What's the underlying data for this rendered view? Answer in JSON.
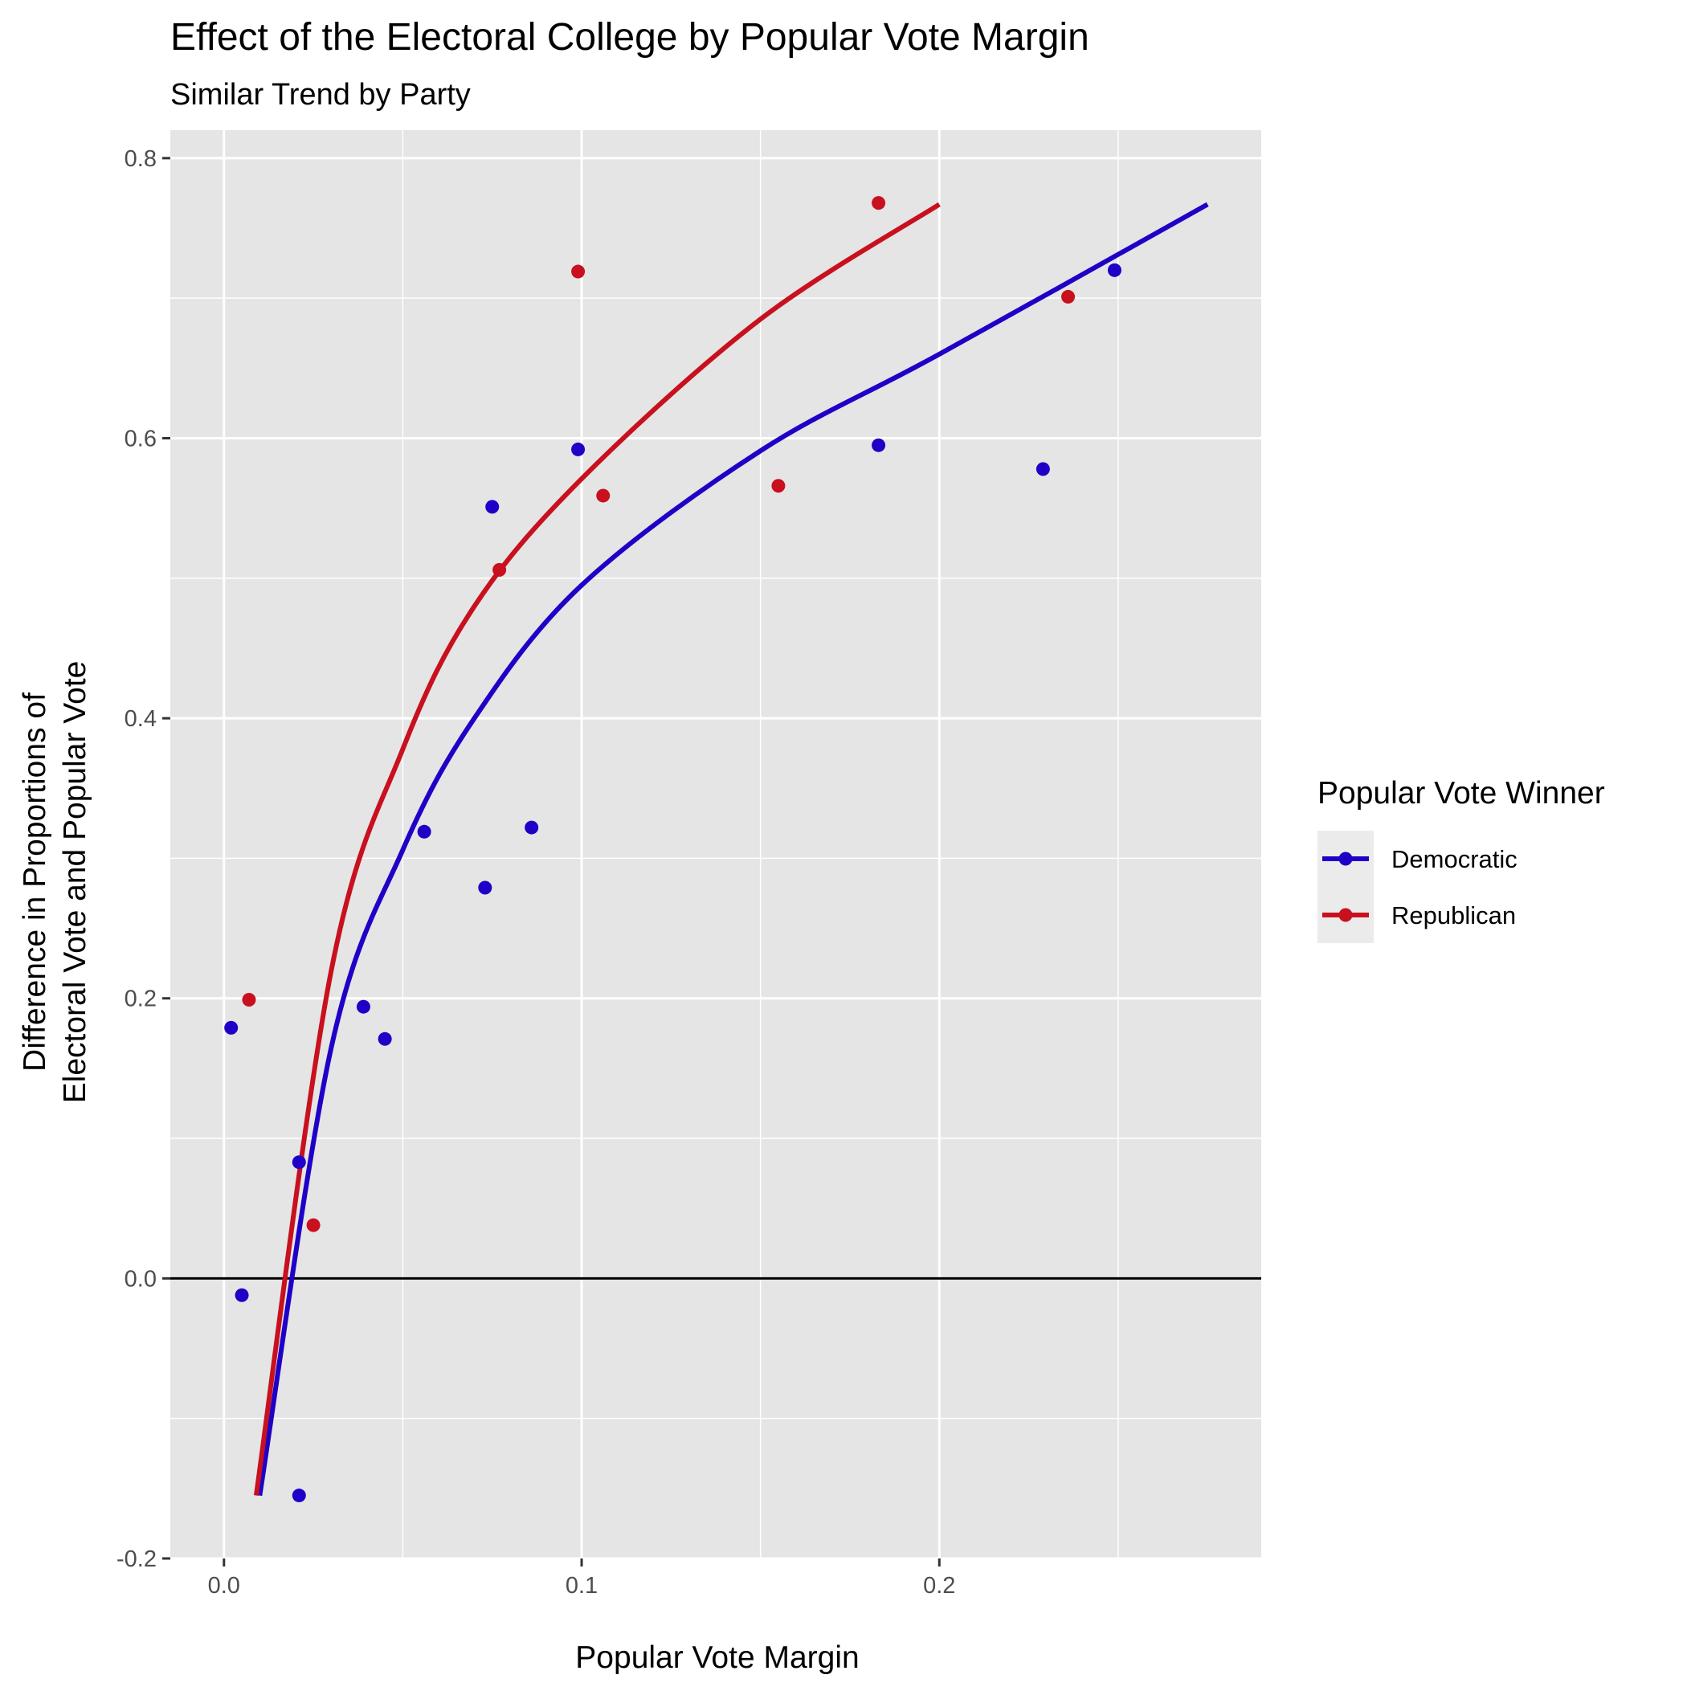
{
  "chart_data": {
    "type": "scatter",
    "title": "Effect of the Electoral College by Popular Vote Margin",
    "subtitle": "Similar Trend by Party",
    "xlabel": "Popular Vote Margin",
    "ylabel_lines": [
      "Difference in Proportions of",
      "Electoral Vote and Popular Vote"
    ],
    "xlim": [
      -0.015,
      0.29
    ],
    "ylim": [
      -0.2,
      0.82
    ],
    "x_ticks": [
      0.0,
      0.1,
      0.2
    ],
    "x_tick_labels": [
      "0.0",
      "0.1",
      "0.2"
    ],
    "y_ticks": [
      -0.2,
      0.0,
      0.2,
      0.4,
      0.6,
      0.8
    ],
    "y_tick_labels": [
      "-0.2",
      "0.0",
      "0.2",
      "0.4",
      "0.6",
      "0.8"
    ],
    "reference_line_y": 0.0,
    "grid": true,
    "background": "#e5e5e5",
    "legend": {
      "title": "Popular Vote Winner",
      "position": "right"
    },
    "series": [
      {
        "name": "Democratic",
        "color": "#1e00c7",
        "points": [
          [
            0.002,
            0.179
          ],
          [
            0.005,
            -0.012
          ],
          [
            0.021,
            0.083
          ],
          [
            0.021,
            -0.155
          ],
          [
            0.039,
            0.194
          ],
          [
            0.045,
            0.171
          ],
          [
            0.056,
            0.319
          ],
          [
            0.073,
            0.279
          ],
          [
            0.075,
            0.551
          ],
          [
            0.086,
            0.322
          ],
          [
            0.099,
            0.592
          ],
          [
            0.183,
            0.595
          ],
          [
            0.229,
            0.578
          ],
          [
            0.249,
            0.72
          ]
        ],
        "trend": {
          "kind": "logarithmic",
          "x": [
            0.01,
            0.03,
            0.05,
            0.07,
            0.1,
            0.15,
            0.2,
            0.275
          ],
          "y": [
            -0.155,
            0.165,
            0.306,
            0.4,
            0.495,
            0.591,
            0.66,
            0.767
          ]
        }
      },
      {
        "name": "Republican",
        "color": "#c8101e",
        "points": [
          [
            0.007,
            0.199
          ],
          [
            0.025,
            0.038
          ],
          [
            0.077,
            0.506
          ],
          [
            0.099,
            0.719
          ],
          [
            0.106,
            0.559
          ],
          [
            0.155,
            0.566
          ],
          [
            0.183,
            0.768
          ],
          [
            0.236,
            0.701
          ]
        ],
        "trend": {
          "kind": "logarithmic",
          "x": [
            0.009,
            0.03,
            0.05,
            0.07,
            0.1,
            0.15,
            0.2
          ],
          "y": [
            -0.155,
            0.22,
            0.378,
            0.48,
            0.571,
            0.685,
            0.767
          ]
        }
      }
    ]
  }
}
